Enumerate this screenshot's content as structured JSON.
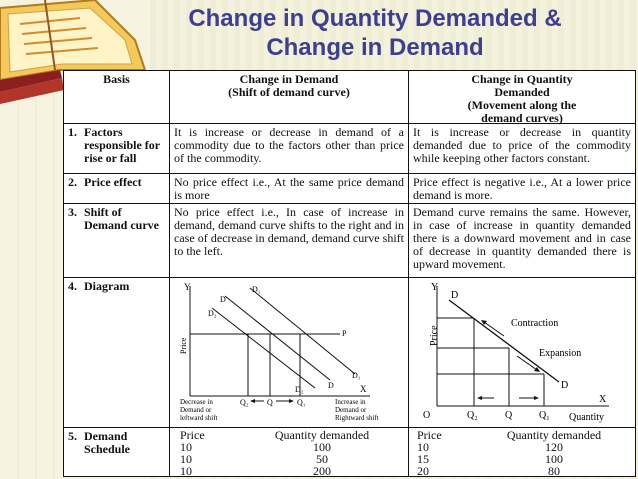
{
  "title_line1": "Change in Quantity Demanded &",
  "title_line2": "Change in Demand",
  "headers": {
    "basis": "Basis",
    "demand_line1": "Change in Demand",
    "demand_line2": "(Shift of demand curve)",
    "qty_line1": "Change in Quantity",
    "qty_line2": "Demanded",
    "qty_line3": "(Movement along the",
    "qty_line4": "demand curves)"
  },
  "rows": [
    {
      "num": "1.",
      "basis": "Factors responsible for rise or fall",
      "demand": "It is increase or decrease in demand of a commodity due to the factors other than price of the commodity.",
      "qty": "It is increase or decrease in quantity demanded due to price of the commodity while keeping other factors constant."
    },
    {
      "num": "2.",
      "basis": "Price effect",
      "demand": "No price effect i.e., At the same price demand is more",
      "qty": "Price effect is negative i.e., At a lower price demand is more."
    },
    {
      "num": "3.",
      "basis": "Shift of Demand curve",
      "demand": "No price effect i.e., In case of increase in demand, demand curve shifts to the right and in case of decrease in demand, demand curve shift to the left.",
      "qty": "Demand curve remains the same. However, in case of increase in quantity demanded there is a downward movement and in case of decrease in quantity demanded there is upward movement."
    }
  ],
  "diagram_row": {
    "num": "4.",
    "basis": "Diagram",
    "left": {
      "y": "Y",
      "x": "X",
      "price": "Price",
      "d": "D",
      "d1": "D₁",
      "d2": "D₂",
      "p": "P",
      "q": "Q",
      "q1": "Q₁",
      "q2": "Q₂",
      "dec1": "Decrease in",
      "dec2": "Demand or",
      "dec3": "leftward shift",
      "inc1": "Increase in",
      "inc2": "Demand or",
      "inc3": "Rightward shift"
    },
    "right": {
      "y": "Y",
      "x": "X",
      "price": "Price",
      "d": "D",
      "contraction": "Contraction",
      "expansion": "Expansion",
      "o": "O",
      "q2": "Q₂",
      "q": "Q",
      "q1": "Q₁",
      "quantity": "Quantity"
    }
  },
  "schedule_row": {
    "num": "5.",
    "basis": "Demand Schedule",
    "price_head": "Price",
    "qty_head": "Quantity demanded",
    "left_rows": [
      [
        "10",
        "100"
      ],
      [
        "10",
        "50"
      ],
      [
        "10",
        "200"
      ]
    ],
    "right_rows": [
      [
        "10",
        "120"
      ],
      [
        "15",
        "100"
      ],
      [
        "20",
        "80"
      ]
    ]
  },
  "colors": {
    "title": "#3d3f90",
    "background": "#f3f1dc"
  }
}
